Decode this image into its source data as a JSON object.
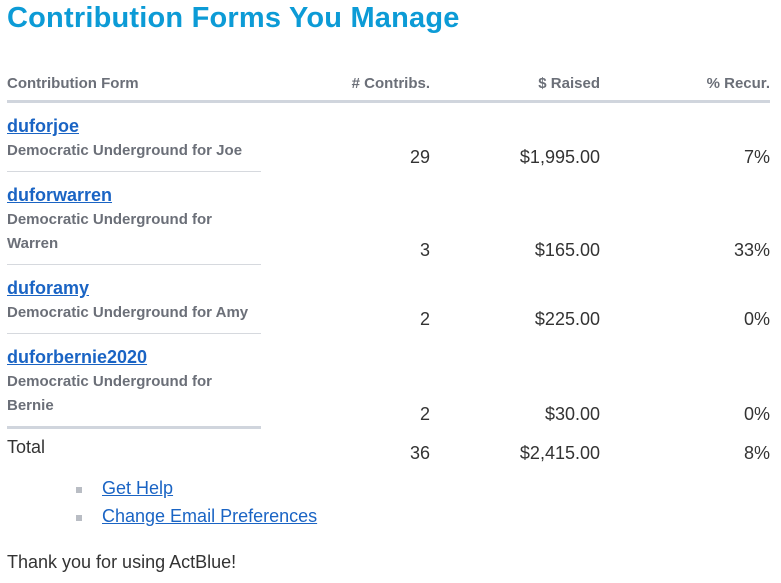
{
  "page": {
    "title": "Contribution Forms You Manage",
    "accent_color": "#0c9bd6",
    "link_color": "#1a64c4"
  },
  "table": {
    "headers": {
      "form": "Contribution Form",
      "contribs": "# Contribs.",
      "raised": "$ Raised",
      "recur": "% Recur."
    },
    "rows": [
      {
        "name": "duforjoe",
        "description": "Democratic Underground for Joe",
        "contribs": "29",
        "raised": "$1,995.00",
        "recur": "7%"
      },
      {
        "name": "duforwarren",
        "description": "Democratic Underground for Warren",
        "contribs": "3",
        "raised": "$165.00",
        "recur": "33%"
      },
      {
        "name": "duforamy",
        "description": "Democratic Underground for Amy",
        "contribs": "2",
        "raised": "$225.00",
        "recur": "0%"
      },
      {
        "name": "duforbernie2020",
        "description": "Democratic Underground for Bernie",
        "contribs": "2",
        "raised": "$30.00",
        "recur": "0%"
      }
    ],
    "total": {
      "label": "Total",
      "contribs": "36",
      "raised": "$2,415.00",
      "recur": "8%"
    }
  },
  "links": [
    {
      "label": "Get Help"
    },
    {
      "label": "Change Email Preferences"
    }
  ],
  "footer": {
    "thanks": "Thank you for using ActBlue!"
  }
}
